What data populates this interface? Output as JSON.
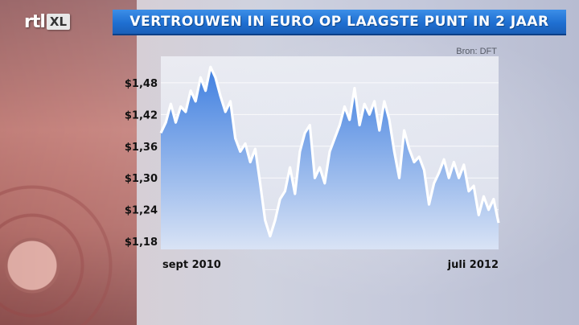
{
  "header": {
    "logo": "rtl",
    "logo_badge": "XL",
    "title": "VERTROUWEN IN EURO OP LAAGSTE PUNT IN 2 JAAR",
    "source": "Bron: DFT"
  },
  "colors": {
    "title_bar": "#1f6fd1",
    "line": "#ffffff",
    "area_top": "#4a86e0",
    "area_bottom": "#d9e2f3",
    "panel": "#dfe3ef"
  },
  "chart_data": {
    "type": "area",
    "title": "VERTROUWEN IN EURO OP LAAGSTE PUNT IN 2 JAAR",
    "xlabel": "",
    "ylabel": "",
    "ylim": [
      1.165,
      1.53
    ],
    "yticks": [
      1.48,
      1.42,
      1.36,
      1.3,
      1.24,
      1.18
    ],
    "ytick_labels": [
      "$1,48",
      "$1,42",
      "$1,36",
      "$1,30",
      "$1,24",
      "$1,18"
    ],
    "x_labels": [
      "sept 2010",
      "juli 2012"
    ],
    "grid": true,
    "legend": "none",
    "series": [
      {
        "values": [
          1.385,
          1.405,
          1.44,
          1.405,
          1.435,
          1.425,
          1.465,
          1.445,
          1.49,
          1.465,
          1.51,
          1.49,
          1.455,
          1.425,
          1.445,
          1.375,
          1.35,
          1.365,
          1.33,
          1.355,
          1.29,
          1.22,
          1.19,
          1.22,
          1.26,
          1.275,
          1.32,
          1.27,
          1.35,
          1.385,
          1.4,
          1.3,
          1.32,
          1.29,
          1.35,
          1.375,
          1.4,
          1.435,
          1.41,
          1.47,
          1.4,
          1.44,
          1.42,
          1.445,
          1.39,
          1.445,
          1.41,
          1.35,
          1.3,
          1.39,
          1.355,
          1.33,
          1.34,
          1.315,
          1.25,
          1.29,
          1.31,
          1.335,
          1.3,
          1.33,
          1.3,
          1.325,
          1.275,
          1.285,
          1.23,
          1.265,
          1.24,
          1.26,
          1.215
        ]
      }
    ]
  }
}
